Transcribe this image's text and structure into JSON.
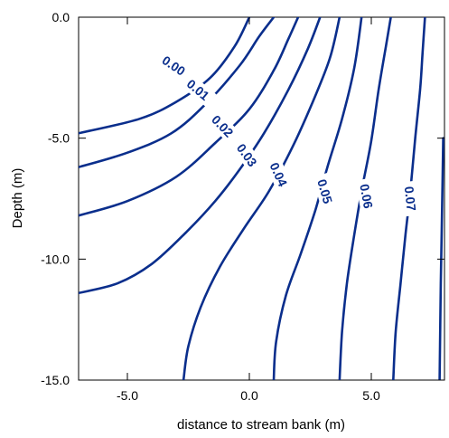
{
  "chart_data": {
    "type": "contour",
    "xlabel": "distance to stream bank (m)",
    "ylabel": "Depth (m)",
    "xlim": [
      -7.0,
      8.0
    ],
    "ylim": [
      -15.0,
      0.0
    ],
    "x_ticks": [
      {
        "value": -5.0,
        "label": "-5.0"
      },
      {
        "value": 0.0,
        "label": "0.0"
      },
      {
        "value": 5.0,
        "label": "5.0"
      }
    ],
    "y_ticks": [
      {
        "value": 0.0,
        "label": "0.0"
      },
      {
        "value": -5.0,
        "label": "-5.0"
      },
      {
        "value": -10.0,
        "label": "-10.0"
      },
      {
        "value": -15.0,
        "label": "-15.0"
      }
    ],
    "line_color": "#0a2e8c",
    "contours": [
      {
        "level": "0.00",
        "label_pos": [
          -3.1,
          -2.0
        ],
        "label_rot": 34,
        "points": [
          [
            -7.0,
            -4.8
          ],
          [
            -4.5,
            -4.2
          ],
          [
            -3.0,
            -3.5
          ],
          [
            -1.6,
            -2.5
          ],
          [
            -0.6,
            -1.2
          ],
          [
            0.0,
            0.0
          ]
        ]
      },
      {
        "level": "0.01",
        "label_pos": [
          -2.1,
          -3.0
        ],
        "label_rot": 40,
        "points": [
          [
            -7.0,
            -6.2
          ],
          [
            -5.0,
            -5.6
          ],
          [
            -3.2,
            -4.8
          ],
          [
            -1.8,
            -3.6
          ],
          [
            -0.4,
            -2.0
          ],
          [
            0.4,
            -0.8
          ],
          [
            1.0,
            0.0
          ]
        ]
      },
      {
        "level": "0.02",
        "label_pos": [
          -1.1,
          -4.5
        ],
        "label_rot": 46,
        "points": [
          [
            -7.0,
            -8.2
          ],
          [
            -5.0,
            -7.6
          ],
          [
            -3.0,
            -6.6
          ],
          [
            -1.4,
            -5.2
          ],
          [
            0.0,
            -3.8
          ],
          [
            1.0,
            -2.2
          ],
          [
            1.6,
            -0.9
          ],
          [
            2.0,
            0.0
          ]
        ]
      },
      {
        "level": "0.03",
        "label_pos": [
          -0.1,
          -5.7
        ],
        "label_rot": 54,
        "points": [
          [
            -7.0,
            -11.4
          ],
          [
            -5.4,
            -11.0
          ],
          [
            -4.0,
            -10.2
          ],
          [
            -2.6,
            -8.9
          ],
          [
            -1.4,
            -7.6
          ],
          [
            -0.4,
            -6.3
          ],
          [
            0.6,
            -4.8
          ],
          [
            1.6,
            -3.0
          ],
          [
            2.4,
            -1.3
          ],
          [
            2.9,
            0.0
          ]
        ]
      },
      {
        "level": "0.04",
        "label_pos": [
          1.2,
          -6.5
        ],
        "label_rot": 66,
        "points": [
          [
            -2.7,
            -15.0
          ],
          [
            -2.5,
            -13.6
          ],
          [
            -2.0,
            -12.0
          ],
          [
            -1.2,
            -10.3
          ],
          [
            -0.2,
            -8.7
          ],
          [
            0.8,
            -7.2
          ],
          [
            1.8,
            -5.3
          ],
          [
            2.6,
            -3.5
          ],
          [
            3.3,
            -1.7
          ],
          [
            3.7,
            0.0
          ]
        ]
      },
      {
        "level": "0.05",
        "label_pos": [
          3.1,
          -7.2
        ],
        "label_rot": 74,
        "points": [
          [
            1.0,
            -15.0
          ],
          [
            1.1,
            -13.4
          ],
          [
            1.5,
            -11.5
          ],
          [
            2.1,
            -9.8
          ],
          [
            2.7,
            -8.0
          ],
          [
            3.2,
            -6.2
          ],
          [
            3.8,
            -4.2
          ],
          [
            4.3,
            -2.1
          ],
          [
            4.6,
            0.0
          ]
        ]
      },
      {
        "level": "0.06",
        "label_pos": [
          4.8,
          -7.4
        ],
        "label_rot": 80,
        "points": [
          [
            3.7,
            -15.0
          ],
          [
            3.8,
            -13.0
          ],
          [
            4.0,
            -11.0
          ],
          [
            4.3,
            -9.0
          ],
          [
            4.6,
            -7.2
          ],
          [
            5.0,
            -5.1
          ],
          [
            5.3,
            -3.0
          ],
          [
            5.6,
            -1.2
          ],
          [
            5.8,
            0.0
          ]
        ]
      },
      {
        "level": "0.07",
        "label_pos": [
          6.6,
          -7.5
        ],
        "label_rot": 84,
        "points": [
          [
            5.9,
            -15.0
          ],
          [
            6.0,
            -13.0
          ],
          [
            6.2,
            -11.0
          ],
          [
            6.4,
            -9.0
          ],
          [
            6.6,
            -7.2
          ],
          [
            6.8,
            -5.0
          ],
          [
            7.0,
            -3.0
          ],
          [
            7.1,
            -1.5
          ],
          [
            7.2,
            0.0
          ]
        ]
      },
      {
        "level": "",
        "label_pos": null,
        "label_rot": 0,
        "points": [
          [
            7.8,
            -15.0
          ],
          [
            7.85,
            -11.0
          ],
          [
            7.9,
            -8.0
          ],
          [
            7.95,
            -5.0
          ]
        ]
      }
    ]
  }
}
